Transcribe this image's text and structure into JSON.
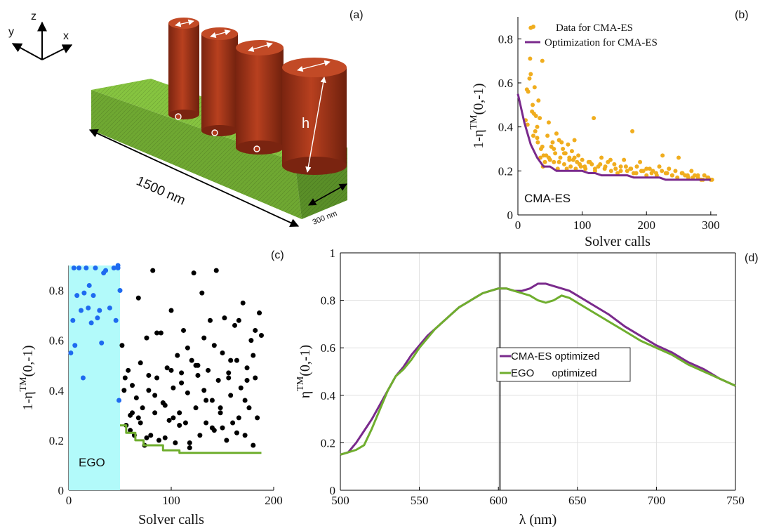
{
  "panels": {
    "a": {
      "label": "(a)",
      "axes": [
        "z",
        "y",
        "x"
      ],
      "length_label": "1500 nm",
      "width_label": "300 nm",
      "height_label": "h",
      "colors": {
        "rod": "#b33a1c",
        "rod_top": "#c4482a",
        "bar_front": "#6fa832",
        "bar_top": "#7fbd3a",
        "bar_side": "#5a8f28"
      }
    },
    "b": {
      "label": "(b)",
      "annotation": "CMA-ES"
    },
    "c": {
      "label": "(c)",
      "annotation": "EGO"
    },
    "d": {
      "label": "(d)"
    }
  },
  "chart_data": [
    {
      "panel": "b",
      "type": "scatter",
      "xlabel": "Solver calls",
      "ylabel": "1-η^TM(0,-1)",
      "xlim": [
        0,
        310
      ],
      "ylim": [
        0,
        0.9
      ],
      "xticks": [
        "0",
        "100",
        "200",
        "300"
      ],
      "yticks": [
        "0",
        "0.2",
        "0.4",
        "0.6",
        "0.8"
      ],
      "legend_position": "top-right",
      "series": [
        {
          "name": "Data for CMA-ES",
          "color": "#f0ad1e",
          "kind": "points",
          "x": [
            12,
            14,
            16,
            18,
            20,
            22,
            24,
            26,
            28,
            30,
            32,
            34,
            36,
            38,
            40,
            42,
            15,
            19,
            23,
            27,
            31,
            35,
            39,
            20,
            25,
            30,
            38,
            44,
            46,
            48,
            50,
            52,
            54,
            56,
            58,
            60,
            62,
            64,
            66,
            68,
            70,
            72,
            74,
            76,
            78,
            80,
            82,
            84,
            86,
            88,
            90,
            92,
            94,
            96,
            98,
            100,
            105,
            110,
            115,
            118,
            120,
            125,
            130,
            135,
            140,
            145,
            150,
            155,
            160,
            165,
            170,
            175,
            178,
            180,
            185,
            190,
            195,
            200,
            205,
            210,
            215,
            220,
            225,
            230,
            235,
            240,
            245,
            250,
            255,
            260,
            265,
            270,
            275,
            280,
            285,
            290,
            295,
            300,
            48,
            56,
            64,
            72,
            80,
            88,
            96,
            104,
            112,
            120,
            128,
            136,
            144,
            152,
            160,
            168,
            176,
            184,
            192,
            200,
            208,
            216,
            224,
            232,
            240,
            248,
            256,
            264,
            272,
            280,
            288,
            296,
            302
          ],
          "y": [
            0.43,
            0.57,
            0.56,
            0.62,
            0.64,
            0.47,
            0.36,
            0.58,
            0.45,
            0.4,
            0.52,
            0.44,
            0.3,
            0.7,
            0.27,
            0.24,
            0.41,
            0.71,
            0.5,
            0.38,
            0.33,
            0.26,
            0.22,
            0.85,
            0.46,
            0.35,
            0.31,
            0.27,
            0.36,
            0.42,
            0.25,
            0.31,
            0.33,
            0.24,
            0.28,
            0.37,
            0.21,
            0.34,
            0.26,
            0.33,
            0.3,
            0.23,
            0.28,
            0.21,
            0.32,
            0.26,
            0.22,
            0.29,
            0.25,
            0.34,
            0.21,
            0.24,
            0.27,
            0.23,
            0.22,
            0.25,
            0.21,
            0.24,
            0.23,
            0.44,
            0.2,
            0.22,
            0.26,
            0.21,
            0.24,
            0.2,
            0.23,
            0.19,
            0.22,
            0.25,
            0.2,
            0.21,
            0.38,
            0.19,
            0.22,
            0.24,
            0.2,
            0.18,
            0.21,
            0.2,
            0.19,
            0.22,
            0.27,
            0.19,
            0.21,
            0.18,
            0.2,
            0.26,
            0.19,
            0.18,
            0.17,
            0.2,
            0.18,
            0.17,
            0.16,
            0.18,
            0.17,
            0.16,
            0.26,
            0.3,
            0.24,
            0.28,
            0.25,
            0.26,
            0.23,
            0.22,
            0.24,
            0.21,
            0.23,
            0.22,
            0.25,
            0.21,
            0.2,
            0.22,
            0.21,
            0.19,
            0.2,
            0.21,
            0.19,
            0.18,
            0.2,
            0.19,
            0.18,
            0.17,
            0.19,
            0.18,
            0.17,
            0.18,
            0.16,
            0.17,
            0.16
          ]
        },
        {
          "name": "Optimization for CMA-ES",
          "color": "#7a2a8c",
          "kind": "line",
          "x": [
            0,
            10,
            20,
            30,
            40,
            50,
            60,
            70,
            80,
            90,
            100,
            110,
            120,
            130,
            140,
            150,
            160,
            170,
            180,
            190,
            200,
            210,
            220,
            230,
            240,
            250,
            260,
            270,
            280,
            290,
            300
          ],
          "y": [
            0.55,
            0.42,
            0.32,
            0.26,
            0.22,
            0.22,
            0.2,
            0.2,
            0.2,
            0.2,
            0.2,
            0.19,
            0.19,
            0.18,
            0.18,
            0.18,
            0.18,
            0.18,
            0.17,
            0.17,
            0.17,
            0.17,
            0.17,
            0.16,
            0.16,
            0.16,
            0.16,
            0.16,
            0.16,
            0.16,
            0.16
          ]
        }
      ]
    },
    {
      "panel": "c",
      "type": "scatter",
      "xlabel": "Solver calls",
      "ylabel": "1-η^TM(0,-1)",
      "xlim": [
        0,
        200
      ],
      "ylim": [
        0,
        0.9
      ],
      "xticks": [
        "0",
        "100",
        "200"
      ],
      "yticks": [
        "0",
        "0.2",
        "0.4",
        "0.6",
        "0.8"
      ],
      "shaded_region_x": [
        0,
        50
      ],
      "shaded_color": "#b2fafa",
      "series": [
        {
          "name": "",
          "color": "#1e6af0",
          "kind": "points",
          "x": [
            2,
            4,
            5,
            6,
            8,
            10,
            12,
            14,
            15,
            17,
            19,
            20,
            22,
            24,
            26,
            28,
            30,
            32,
            34,
            36,
            40,
            44,
            46,
            48,
            48,
            50,
            49
          ],
          "y": [
            0.55,
            0.68,
            0.89,
            0.58,
            0.78,
            0.89,
            0.72,
            0.45,
            0.79,
            0.89,
            0.73,
            0.82,
            0.67,
            0.78,
            0.89,
            0.69,
            0.72,
            0.59,
            0.87,
            0.88,
            0.73,
            0.89,
            0.68,
            0.9,
            0.89,
            0.8,
            0.36
          ]
        },
        {
          "name": "",
          "color": "#000000",
          "kind": "points",
          "x": [
            52,
            55,
            56,
            58,
            60,
            62,
            64,
            66,
            68,
            70,
            72,
            74,
            76,
            78,
            80,
            82,
            84,
            86,
            88,
            90,
            92,
            94,
            96,
            98,
            100,
            102,
            104,
            106,
            108,
            110,
            112,
            114,
            116,
            118,
            120,
            122,
            124,
            126,
            128,
            130,
            132,
            134,
            136,
            138,
            140,
            142,
            144,
            146,
            148,
            150,
            152,
            154,
            156,
            158,
            160,
            162,
            164,
            166,
            168,
            170,
            172,
            174,
            176,
            178,
            180,
            182,
            184,
            186,
            188,
            54,
            62,
            70,
            78,
            86,
            94,
            102,
            110,
            118,
            126,
            134,
            142,
            150,
            158,
            166,
            174,
            182,
            60,
            68,
            76,
            84,
            92,
            100,
            108,
            116,
            124,
            132,
            140,
            148,
            156,
            164,
            172,
            180
          ],
          "y": [
            0.58,
            0.45,
            0.26,
            0.48,
            0.3,
            0.42,
            0.22,
            0.37,
            0.77,
            0.27,
            0.33,
            0.18,
            0.61,
            0.4,
            0.22,
            0.88,
            0.31,
            0.45,
            0.2,
            0.63,
            0.35,
            0.21,
            0.49,
            0.28,
            0.72,
            0.41,
            0.19,
            0.54,
            0.31,
            0.47,
            0.64,
            0.27,
            0.39,
            0.17,
            0.52,
            0.87,
            0.33,
            0.46,
            0.22,
            0.79,
            0.61,
            0.27,
            0.48,
            0.68,
            0.36,
            0.24,
            0.88,
            0.44,
            0.31,
            0.55,
            0.69,
            0.2,
            0.47,
            0.38,
            0.27,
            0.66,
            0.52,
            0.29,
            0.41,
            0.75,
            0.22,
            0.49,
            0.33,
            0.6,
            0.18,
            0.45,
            0.29,
            0.71,
            0.62,
            0.4,
            0.31,
            0.51,
            0.46,
            0.63,
            0.34,
            0.29,
            0.43,
            0.19,
            0.5,
            0.36,
            0.58,
            0.25,
            0.52,
            0.68,
            0.44,
            0.64,
            0.24,
            0.29,
            0.21,
            0.38,
            0.35,
            0.48,
            0.26,
            0.57,
            0.5,
            0.4,
            0.25,
            0.33,
            0.45,
            0.23,
            0.36,
            0.54
          ]
        },
        {
          "name": "",
          "color": "#6fae2e",
          "kind": "step",
          "x": [
            50,
            56,
            56,
            65,
            65,
            73,
            73,
            92,
            92,
            108,
            108,
            188
          ],
          "y": [
            0.26,
            0.26,
            0.23,
            0.23,
            0.2,
            0.2,
            0.18,
            0.18,
            0.16,
            0.16,
            0.15,
            0.15
          ]
        }
      ]
    },
    {
      "panel": "d",
      "type": "line",
      "xlabel": "λ (nm)",
      "ylabel": "η^TM(0,-1)",
      "xlim": [
        500,
        750
      ],
      "ylim": [
        0,
        1
      ],
      "xticks": [
        "500",
        "550",
        "600",
        "650",
        "700",
        "750"
      ],
      "yticks": [
        "0",
        "0.2",
        "0.4",
        "0.6",
        "0.8",
        "1"
      ],
      "grid": true,
      "vline_x": 601,
      "legend_position": "center-right",
      "series": [
        {
          "name": "CMA-ES optimized",
          "color": "#7a2a8c",
          "x": [
            500,
            505,
            510,
            515,
            520,
            525,
            530,
            535,
            540,
            545,
            550,
            555,
            560,
            565,
            570,
            575,
            580,
            585,
            590,
            595,
            600,
            605,
            610,
            615,
            620,
            625,
            630,
            635,
            640,
            645,
            650,
            660,
            670,
            680,
            690,
            700,
            710,
            720,
            730,
            740,
            750
          ],
          "y": [
            0.15,
            0.16,
            0.2,
            0.25,
            0.3,
            0.36,
            0.42,
            0.48,
            0.52,
            0.57,
            0.61,
            0.65,
            0.68,
            0.71,
            0.74,
            0.77,
            0.79,
            0.81,
            0.83,
            0.84,
            0.85,
            0.85,
            0.84,
            0.84,
            0.85,
            0.87,
            0.87,
            0.86,
            0.85,
            0.84,
            0.82,
            0.78,
            0.74,
            0.69,
            0.65,
            0.61,
            0.58,
            0.54,
            0.51,
            0.47,
            0.44
          ]
        },
        {
          "name": "EGO      optimized",
          "color": "#6fae2e",
          "x": [
            500,
            505,
            510,
            515,
            520,
            525,
            530,
            535,
            540,
            545,
            550,
            555,
            560,
            565,
            570,
            575,
            580,
            585,
            590,
            595,
            600,
            605,
            610,
            615,
            620,
            625,
            630,
            635,
            640,
            645,
            650,
            660,
            670,
            680,
            690,
            700,
            710,
            720,
            730,
            740,
            750
          ],
          "y": [
            0.15,
            0.16,
            0.17,
            0.19,
            0.26,
            0.34,
            0.42,
            0.48,
            0.51,
            0.55,
            0.6,
            0.64,
            0.68,
            0.71,
            0.74,
            0.77,
            0.79,
            0.81,
            0.83,
            0.84,
            0.85,
            0.85,
            0.84,
            0.83,
            0.82,
            0.8,
            0.79,
            0.8,
            0.82,
            0.81,
            0.79,
            0.75,
            0.71,
            0.67,
            0.63,
            0.6,
            0.57,
            0.53,
            0.5,
            0.47,
            0.44
          ]
        }
      ]
    }
  ]
}
